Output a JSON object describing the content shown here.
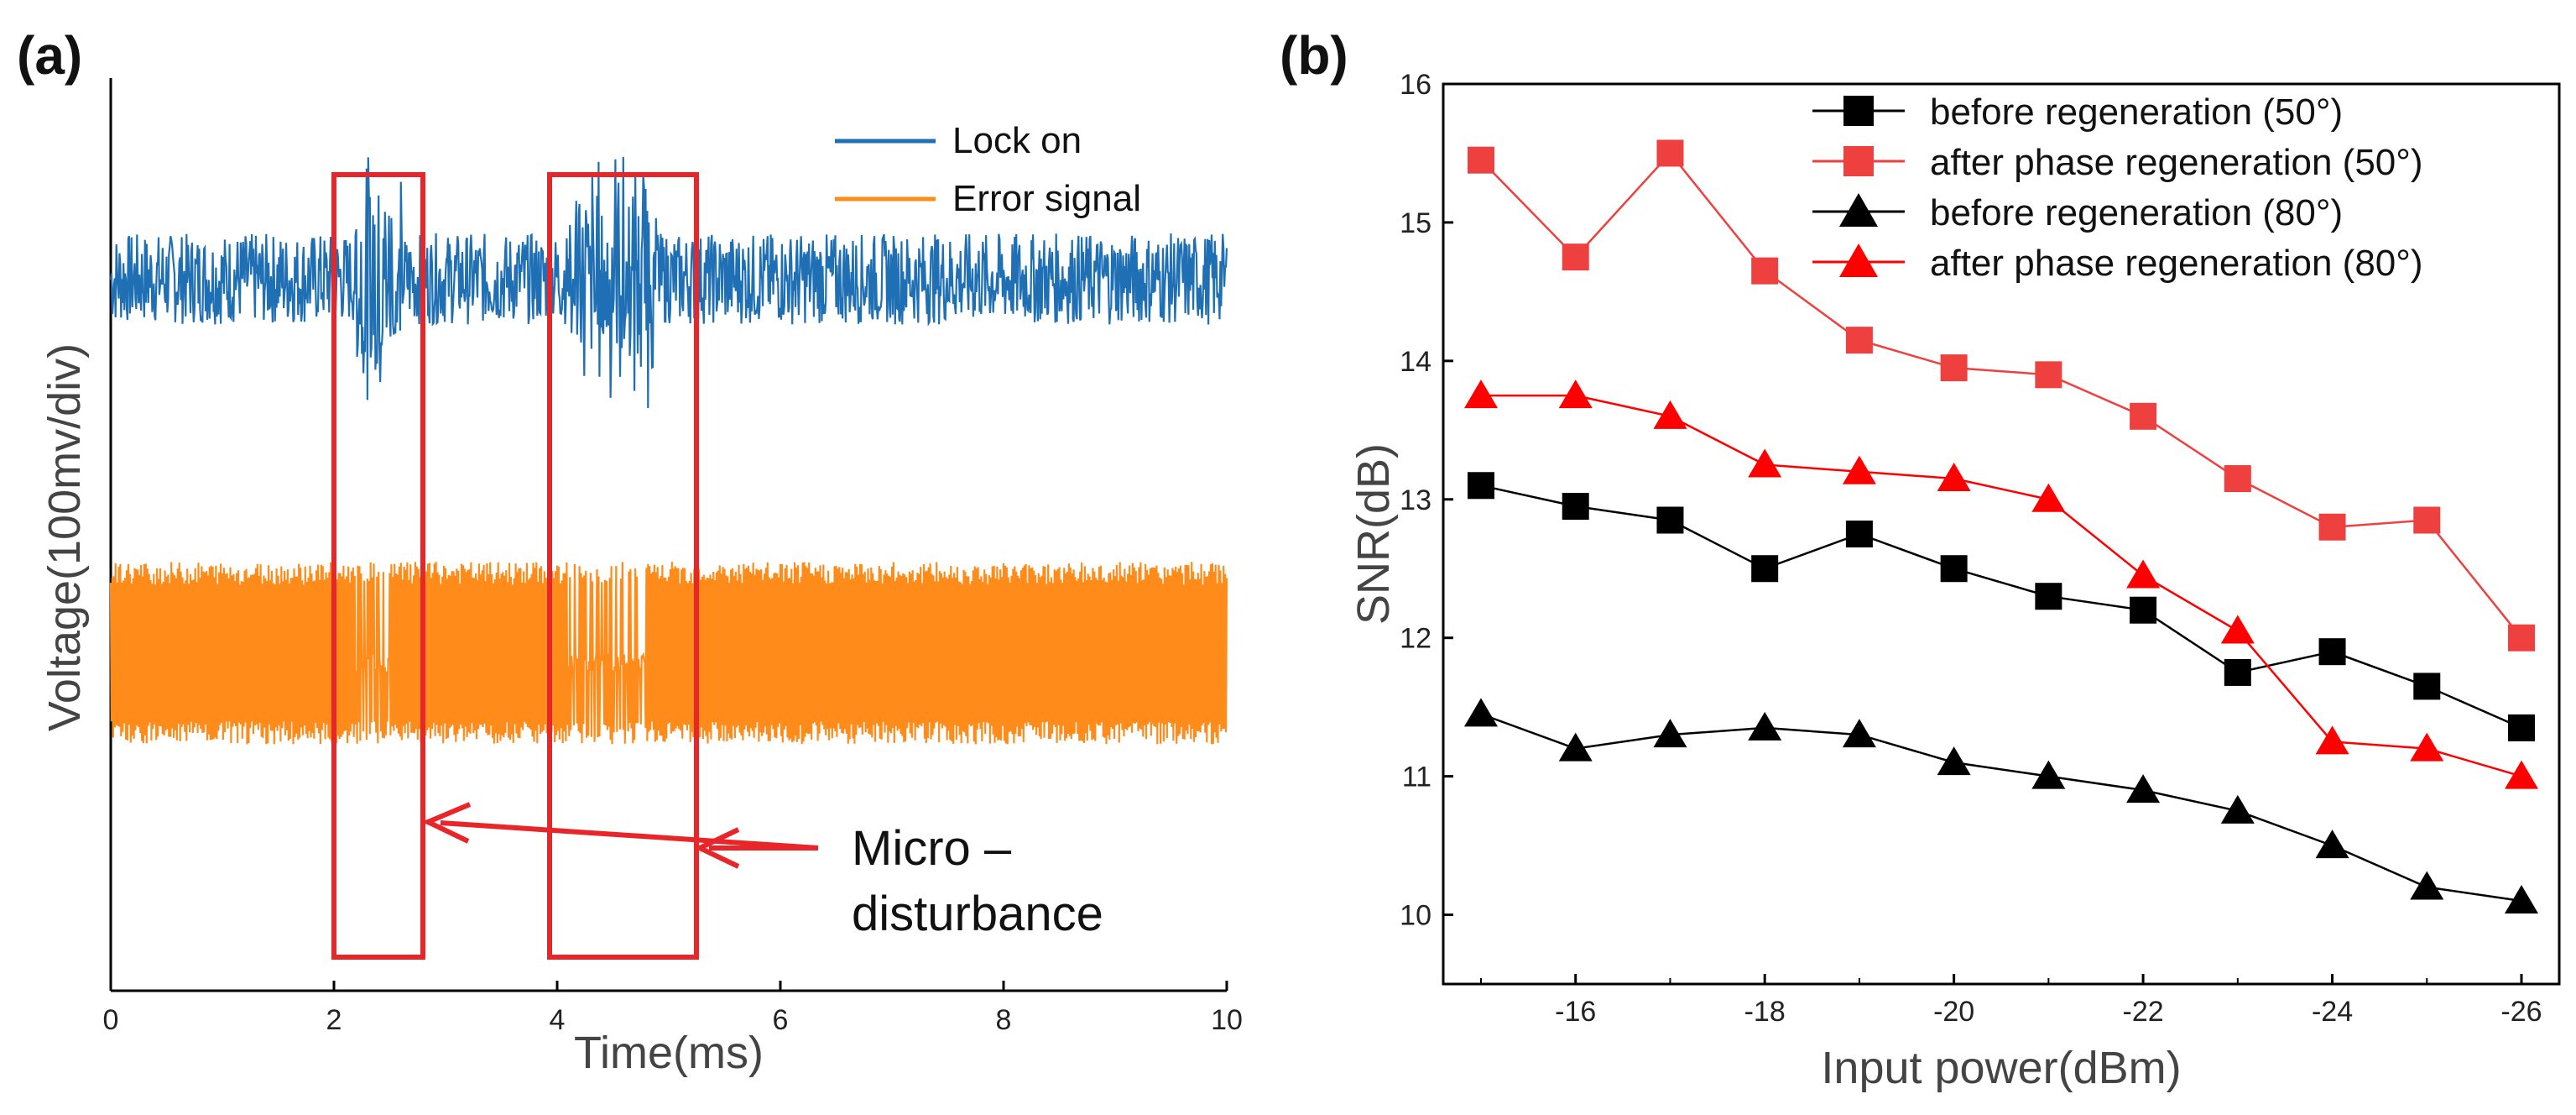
{
  "chart_data": [
    {
      "panel_label": "(a)",
      "type": "line",
      "title": "",
      "xlabel": "Time(ms)",
      "ylabel": "Voltage(100mv/div)",
      "xlim": [
        0,
        10
      ],
      "x_ticks": [
        "0",
        "2",
        "4",
        "6",
        "8",
        "10"
      ],
      "series": [
        {
          "name": "Lock on",
          "color": "#1f6fb4",
          "baseline": 0.78,
          "band_half_width": 0.05,
          "disturbances": [
            {
              "from_ms": 2.2,
              "to_ms": 2.6
            },
            {
              "from_ms": 4.1,
              "to_ms": 4.9
            }
          ]
        },
        {
          "name": "Error signal",
          "color": "#ff8c1a",
          "baseline": 0.37,
          "band_half_width": 0.1,
          "dropouts": [
            {
              "from_ms": 2.2,
              "to_ms": 2.5
            },
            {
              "from_ms": 4.1,
              "to_ms": 4.8
            }
          ]
        }
      ],
      "highlight_boxes_ms": [
        [
          2.0,
          2.8
        ],
        [
          3.95,
          5.25
        ]
      ],
      "annotation": {
        "line1": "Micro –",
        "line2": "disturbance"
      }
    },
    {
      "panel_label": "(b)",
      "type": "line",
      "title": "",
      "xlabel": "Input power(dBm)",
      "ylabel": "SNR(dB)",
      "x": [
        -15,
        -16,
        -17,
        -18,
        -19,
        -20,
        -21,
        -22,
        -23,
        -24,
        -25,
        -26
      ],
      "x_ticks": [
        "-16",
        "-18",
        "-20",
        "-22",
        "-24",
        "-26"
      ],
      "ylim": [
        9.5,
        16
      ],
      "y_ticks": [
        "10",
        "11",
        "12",
        "13",
        "14",
        "15",
        "16"
      ],
      "legend_position": "top-right",
      "series": [
        {
          "name": "before regeneration (50°)",
          "marker": "square",
          "color": "#000000",
          "values": [
            13.1,
            12.95,
            12.85,
            12.5,
            12.75,
            12.5,
            12.3,
            12.2,
            11.75,
            11.9,
            11.65,
            11.35
          ]
        },
        {
          "name": "after phase regeneration (50°)",
          "marker": "square",
          "color": "#ef4040",
          "values": [
            15.45,
            14.75,
            15.5,
            14.65,
            14.15,
            13.95,
            13.9,
            13.6,
            13.15,
            12.8,
            12.85,
            12.0
          ]
        },
        {
          "name": "before regeneration (80°)",
          "marker": "triangle",
          "color": "#000000",
          "values": [
            11.45,
            11.2,
            11.3,
            11.35,
            11.3,
            11.1,
            11.0,
            10.9,
            10.75,
            10.5,
            10.2,
            10.1
          ]
        },
        {
          "name": "after phase regeneration (80°)",
          "marker": "triangle",
          "color": "#ff0000",
          "values": [
            13.75,
            13.75,
            13.6,
            13.25,
            13.2,
            13.15,
            13.0,
            12.45,
            12.05,
            11.25,
            11.2,
            11.0
          ]
        }
      ]
    }
  ]
}
